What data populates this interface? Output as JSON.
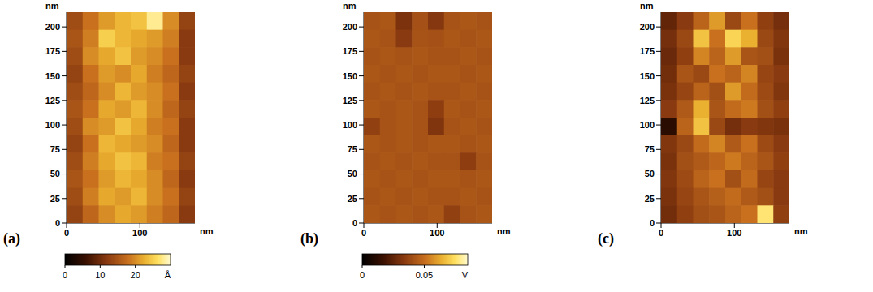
{
  "chart_data": [
    {
      "type": "heatmap",
      "label": "(a)",
      "x_label": "nm",
      "y_label": "nm",
      "xlim": [
        0,
        175
      ],
      "xticks": [
        0,
        100
      ],
      "ylim": [
        0,
        215
      ],
      "yticks": [
        0,
        25,
        50,
        75,
        100,
        125,
        150,
        175,
        200
      ],
      "zlim": [
        0,
        30
      ],
      "zticks": [
        0,
        10,
        20
      ],
      "z_unit": "Å",
      "cells": [
        [
          14,
          18,
          21,
          23,
          24,
          28,
          20,
          13
        ],
        [
          15,
          19,
          25,
          23,
          22,
          21,
          19,
          12
        ],
        [
          14,
          20,
          22,
          24,
          21,
          20,
          18,
          12
        ],
        [
          13,
          18,
          21,
          20,
          22,
          19,
          17,
          13
        ],
        [
          14,
          17,
          20,
          23,
          21,
          20,
          18,
          12
        ],
        [
          15,
          18,
          22,
          21,
          23,
          20,
          17,
          13
        ],
        [
          14,
          20,
          21,
          24,
          22,
          19,
          18,
          12
        ],
        [
          13,
          18,
          23,
          22,
          21,
          20,
          17,
          12
        ],
        [
          14,
          19,
          22,
          24,
          23,
          19,
          18,
          13
        ],
        [
          15,
          18,
          21,
          23,
          22,
          20,
          17,
          12
        ],
        [
          14,
          19,
          22,
          21,
          23,
          20,
          18,
          13
        ],
        [
          13,
          17,
          20,
          22,
          21,
          19,
          17,
          12
        ]
      ]
    },
    {
      "type": "heatmap",
      "label": "(b)",
      "x_label": "nm",
      "y_label": "nm",
      "xlim": [
        0,
        175
      ],
      "xticks": [
        0,
        100
      ],
      "ylim": [
        0,
        215
      ],
      "yticks": [
        0,
        25,
        50,
        75,
        100,
        125,
        150,
        175,
        200
      ],
      "zlim": [
        0,
        0.085
      ],
      "zticks": [
        0,
        0.05
      ],
      "z_unit": "V",
      "cells": [
        [
          0.042,
          0.043,
          0.031,
          0.041,
          0.033,
          0.042,
          0.043,
          0.042
        ],
        [
          0.043,
          0.042,
          0.034,
          0.042,
          0.041,
          0.043,
          0.042,
          0.043
        ],
        [
          0.042,
          0.043,
          0.042,
          0.043,
          0.042,
          0.042,
          0.043,
          0.042
        ],
        [
          0.043,
          0.042,
          0.043,
          0.042,
          0.043,
          0.043,
          0.042,
          0.043
        ],
        [
          0.042,
          0.043,
          0.042,
          0.043,
          0.042,
          0.042,
          0.043,
          0.042
        ],
        [
          0.043,
          0.042,
          0.043,
          0.042,
          0.035,
          0.043,
          0.042,
          0.043
        ],
        [
          0.036,
          0.042,
          0.043,
          0.042,
          0.032,
          0.042,
          0.043,
          0.042
        ],
        [
          0.043,
          0.042,
          0.043,
          0.042,
          0.043,
          0.043,
          0.042,
          0.043
        ],
        [
          0.042,
          0.043,
          0.042,
          0.043,
          0.042,
          0.042,
          0.035,
          0.042
        ],
        [
          0.043,
          0.042,
          0.043,
          0.042,
          0.043,
          0.043,
          0.042,
          0.043
        ],
        [
          0.042,
          0.043,
          0.042,
          0.043,
          0.042,
          0.042,
          0.043,
          0.042
        ],
        [
          0.043,
          0.042,
          0.043,
          0.042,
          0.043,
          0.036,
          0.042,
          0.043
        ]
      ]
    },
    {
      "type": "heatmap",
      "label": "(c)",
      "x_label": "nm",
      "y_label": "nm",
      "xlim": [
        0,
        175
      ],
      "xticks": [
        0,
        100
      ],
      "ylim": [
        0,
        215
      ],
      "yticks": [
        0,
        25,
        50,
        75,
        100,
        125,
        150,
        175,
        200
      ],
      "zlim": [
        0,
        1
      ],
      "cells": [
        [
          0.3,
          0.4,
          0.55,
          0.7,
          0.45,
          0.6,
          0.42,
          0.35
        ],
        [
          0.35,
          0.45,
          0.8,
          0.6,
          0.85,
          0.75,
          0.45,
          0.38
        ],
        [
          0.32,
          0.42,
          0.65,
          0.55,
          0.7,
          0.5,
          0.48,
          0.36
        ],
        [
          0.34,
          0.5,
          0.45,
          0.6,
          0.55,
          0.65,
          0.44,
          0.4
        ],
        [
          0.36,
          0.44,
          0.55,
          0.48,
          0.7,
          0.58,
          0.46,
          0.38
        ],
        [
          0.4,
          0.52,
          0.75,
          0.5,
          0.58,
          0.62,
          0.48,
          0.42
        ],
        [
          0.15,
          0.55,
          0.8,
          0.45,
          0.35,
          0.4,
          0.38,
          0.36
        ],
        [
          0.38,
          0.45,
          0.58,
          0.65,
          0.52,
          0.6,
          0.46,
          0.4
        ],
        [
          0.36,
          0.48,
          0.52,
          0.56,
          0.62,
          0.55,
          0.5,
          0.42
        ],
        [
          0.38,
          0.46,
          0.55,
          0.6,
          0.48,
          0.58,
          0.44,
          0.4
        ],
        [
          0.36,
          0.44,
          0.5,
          0.54,
          0.58,
          0.52,
          0.48,
          0.4
        ],
        [
          0.34,
          0.42,
          0.48,
          0.5,
          0.55,
          0.6,
          0.9,
          0.42
        ]
      ]
    }
  ]
}
